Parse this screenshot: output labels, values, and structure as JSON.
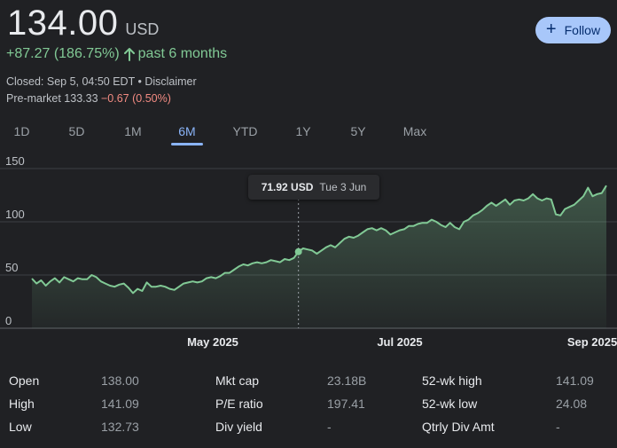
{
  "quote": {
    "price": "134.00",
    "currency": "USD",
    "change": "+87.27 (186.75%)",
    "period": "past 6 months",
    "closed": "Closed: Sep 5, 04:50 EDT",
    "separator": " • ",
    "disclaimer": "Disclaimer",
    "premarket_label": "Pre-market 133.33 ",
    "premarket_change": "−0.67 (0.50%)",
    "colors": {
      "up": "#81c995",
      "down": "#f28b82",
      "accent": "#8ab4f8"
    }
  },
  "follow": {
    "label": "Follow",
    "icon": "plus-icon"
  },
  "tabs": [
    {
      "label": "1D"
    },
    {
      "label": "5D"
    },
    {
      "label": "1M"
    },
    {
      "label": "6M",
      "active": true
    },
    {
      "label": "YTD"
    },
    {
      "label": "1Y"
    },
    {
      "label": "5Y"
    },
    {
      "label": "Max"
    }
  ],
  "tooltip": {
    "value": "71.92 USD",
    "date": "Tue 3 Jun"
  },
  "chart_data": {
    "type": "area",
    "yticks": [
      150,
      100,
      50,
      0
    ],
    "ylim": [
      0,
      150
    ],
    "xtick_labels": [
      "May 2025",
      "Jul 2025",
      "Sep 2025"
    ],
    "grid": true,
    "highlight": {
      "value": 71.92,
      "date": "Tue 3 Jun"
    },
    "series": [
      {
        "values": [
          46.7,
          42,
          45,
          40,
          44,
          47,
          43,
          48,
          46,
          44,
          47,
          46,
          46,
          50,
          48,
          44,
          42,
          40,
          39,
          41,
          42,
          38,
          33,
          37,
          35,
          43,
          39,
          39,
          40,
          39,
          37,
          36,
          39,
          42,
          43,
          44,
          43,
          44,
          47,
          48,
          47,
          49,
          52,
          52,
          55,
          58,
          60,
          59,
          61,
          62,
          61,
          62,
          64,
          63,
          62,
          65,
          64,
          66,
          71.92,
          75,
          74,
          73,
          70,
          73,
          76,
          78,
          76,
          80,
          84,
          86,
          85,
          87,
          90,
          93,
          94,
          92,
          94,
          92,
          88,
          90,
          92,
          93,
          96,
          96,
          98,
          99,
          99,
          102,
          100,
          97,
          95,
          99,
          95,
          93,
          100,
          102,
          106,
          108,
          111,
          115,
          118,
          115,
          118,
          121,
          116,
          120,
          121,
          120,
          122,
          126,
          122,
          120,
          122,
          121,
          107,
          106,
          112,
          114,
          116,
          120,
          124,
          132,
          124,
          126,
          127,
          134
        ]
      }
    ]
  },
  "stats": [
    {
      "label": "Open",
      "value": "138.00"
    },
    {
      "label": "High",
      "value": "141.09"
    },
    {
      "label": "Low",
      "value": "132.73"
    },
    {
      "label": "Mkt cap",
      "value": "23.18B"
    },
    {
      "label": "P/E ratio",
      "value": "197.41"
    },
    {
      "label": "Div yield",
      "value": "-"
    },
    {
      "label": "52-wk high",
      "value": "141.09"
    },
    {
      "label": "52-wk low",
      "value": "24.08"
    },
    {
      "label": "Qtrly Div Amt",
      "value": "-"
    }
  ]
}
